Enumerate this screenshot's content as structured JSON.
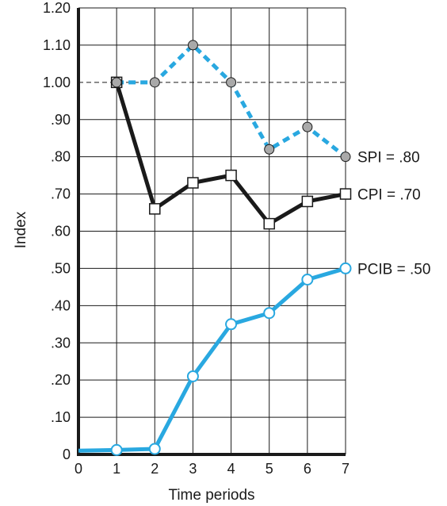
{
  "chart_data": {
    "type": "line",
    "xlabel": "Time periods",
    "ylabel": "Index",
    "xlim": [
      0,
      7
    ],
    "ylim": [
      0,
      1.2
    ],
    "x_ticks": [
      0,
      1,
      2,
      3,
      4,
      5,
      6,
      7
    ],
    "x_tick_labels": [
      "0",
      "1",
      "2",
      "3",
      "4",
      "5",
      "6",
      "7"
    ],
    "y_ticks": [
      0,
      0.1,
      0.2,
      0.3,
      0.4,
      0.5,
      0.6,
      0.7,
      0.8,
      0.9,
      1.0,
      1.1,
      1.2
    ],
    "y_tick_labels": [
      "0",
      ".10",
      ".20",
      ".30",
      ".40",
      ".50",
      ".60",
      ".70",
      ".80",
      ".90",
      "1.00",
      "1.10",
      "1.20"
    ],
    "grid": true,
    "reference_line": {
      "y": 1.0,
      "style": "dashed"
    },
    "series": [
      {
        "key": "spi",
        "label": "SPI = .80",
        "color": "#29a8e0",
        "line_style": "dashed",
        "marker": "circle-gray",
        "x": [
          1,
          2,
          3,
          4,
          5,
          6,
          7
        ],
        "y": [
          1.0,
          1.0,
          1.1,
          1.0,
          0.82,
          0.88,
          0.8
        ]
      },
      {
        "key": "cpi",
        "label": "CPI = .70",
        "color": "#1a1a1a",
        "line_style": "solid",
        "marker": "square-open",
        "x": [
          1,
          2,
          3,
          4,
          5,
          6,
          7
        ],
        "y": [
          1.0,
          0.66,
          0.73,
          0.75,
          0.62,
          0.68,
          0.7
        ]
      },
      {
        "key": "pcib",
        "label": "PCIB = .50",
        "color": "#29a8e0",
        "line_style": "solid",
        "marker": "circle-open",
        "x": [
          0,
          1,
          2,
          3,
          4,
          5,
          6,
          7
        ],
        "y": [
          0.01,
          0.012,
          0.015,
          0.21,
          0.35,
          0.38,
          0.47,
          0.5
        ]
      }
    ]
  }
}
